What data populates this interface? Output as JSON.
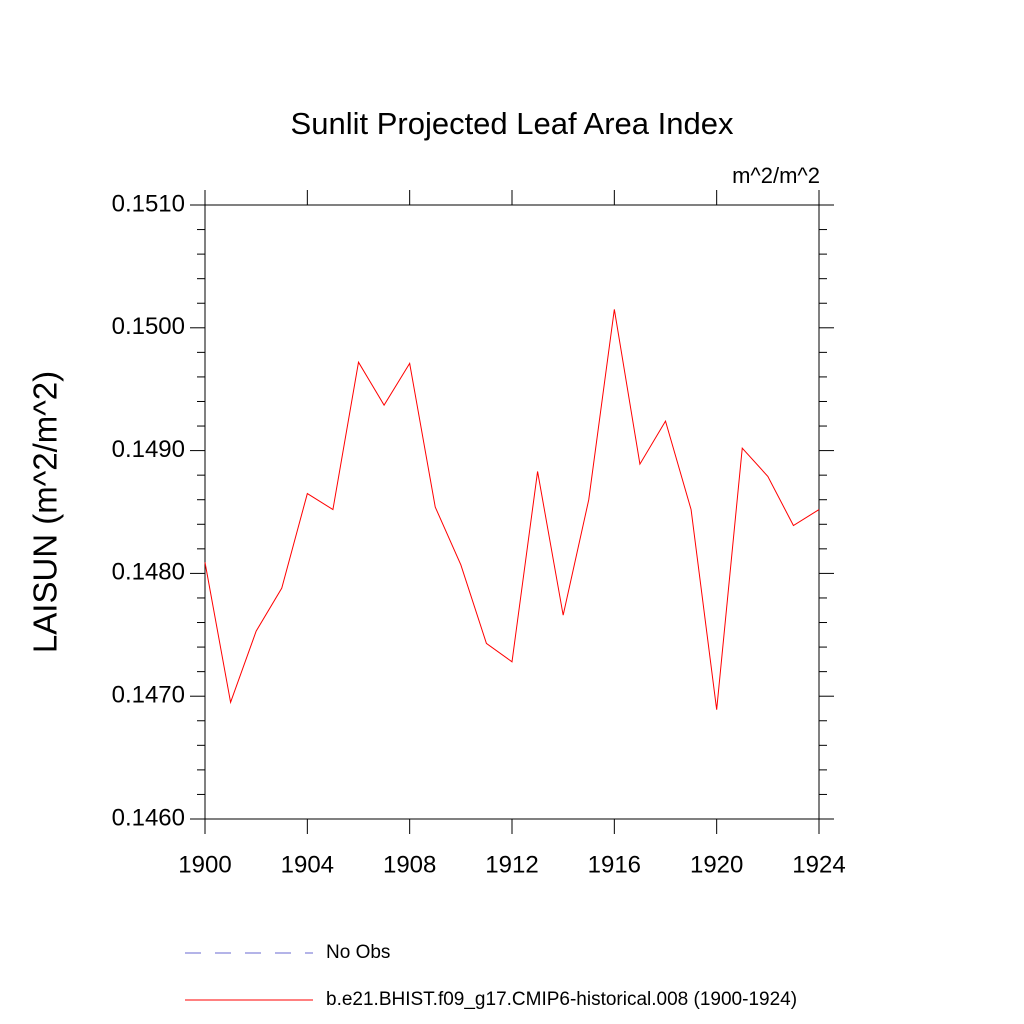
{
  "chart_data": {
    "type": "line",
    "title": "Sunlit Projected Leaf Area Index",
    "units_label": "m^2/m^2",
    "y_label": "LAISUN  (m^2/m^2)",
    "x": [
      1900,
      1901,
      1902,
      1903,
      1904,
      1905,
      1906,
      1907,
      1908,
      1909,
      1910,
      1911,
      1912,
      1913,
      1914,
      1915,
      1916,
      1917,
      1918,
      1919,
      1920,
      1921,
      1922,
      1923,
      1924
    ],
    "series": [
      {
        "name": "b.e21.BHIST.f09_g17.CMIP6-historical.008 (1900-1924)",
        "color": "#ff0000",
        "values": [
          0.14809,
          0.14695,
          0.14753,
          0.14788,
          0.14865,
          0.14852,
          0.14972,
          0.14937,
          0.14971,
          0.14854,
          0.14807,
          0.14743,
          0.14728,
          0.14883,
          0.14766,
          0.1486,
          0.15015,
          0.14889,
          0.14924,
          0.14852,
          0.14689,
          0.14902,
          0.14879,
          0.14839,
          0.14852
        ]
      }
    ],
    "legend_items": [
      {
        "name": "No Obs",
        "color": "#6a6ad0",
        "dashed": true
      }
    ],
    "xlim": [
      1900,
      1924
    ],
    "xticks": [
      1900,
      1904,
      1908,
      1912,
      1916,
      1920,
      1924
    ],
    "ylim": [
      0.146,
      0.151
    ],
    "yticks": [
      {
        "value": 0.146,
        "label": "0.1460"
      },
      {
        "value": 0.147,
        "label": "0.1470"
      },
      {
        "value": 0.148,
        "label": "0.1480"
      },
      {
        "value": 0.149,
        "label": "0.1490"
      },
      {
        "value": 0.15,
        "label": "0.1500"
      },
      {
        "value": 0.151,
        "label": "0.1510"
      }
    ],
    "yminorticks": [
      0.1462,
      0.1464,
      0.1466,
      0.1468,
      0.1472,
      0.1474,
      0.1476,
      0.1478,
      0.1482,
      0.1484,
      0.1486,
      0.1488,
      0.1492,
      0.1494,
      0.1496,
      0.1498,
      0.1502,
      0.1504,
      0.1506,
      0.1508
    ]
  }
}
